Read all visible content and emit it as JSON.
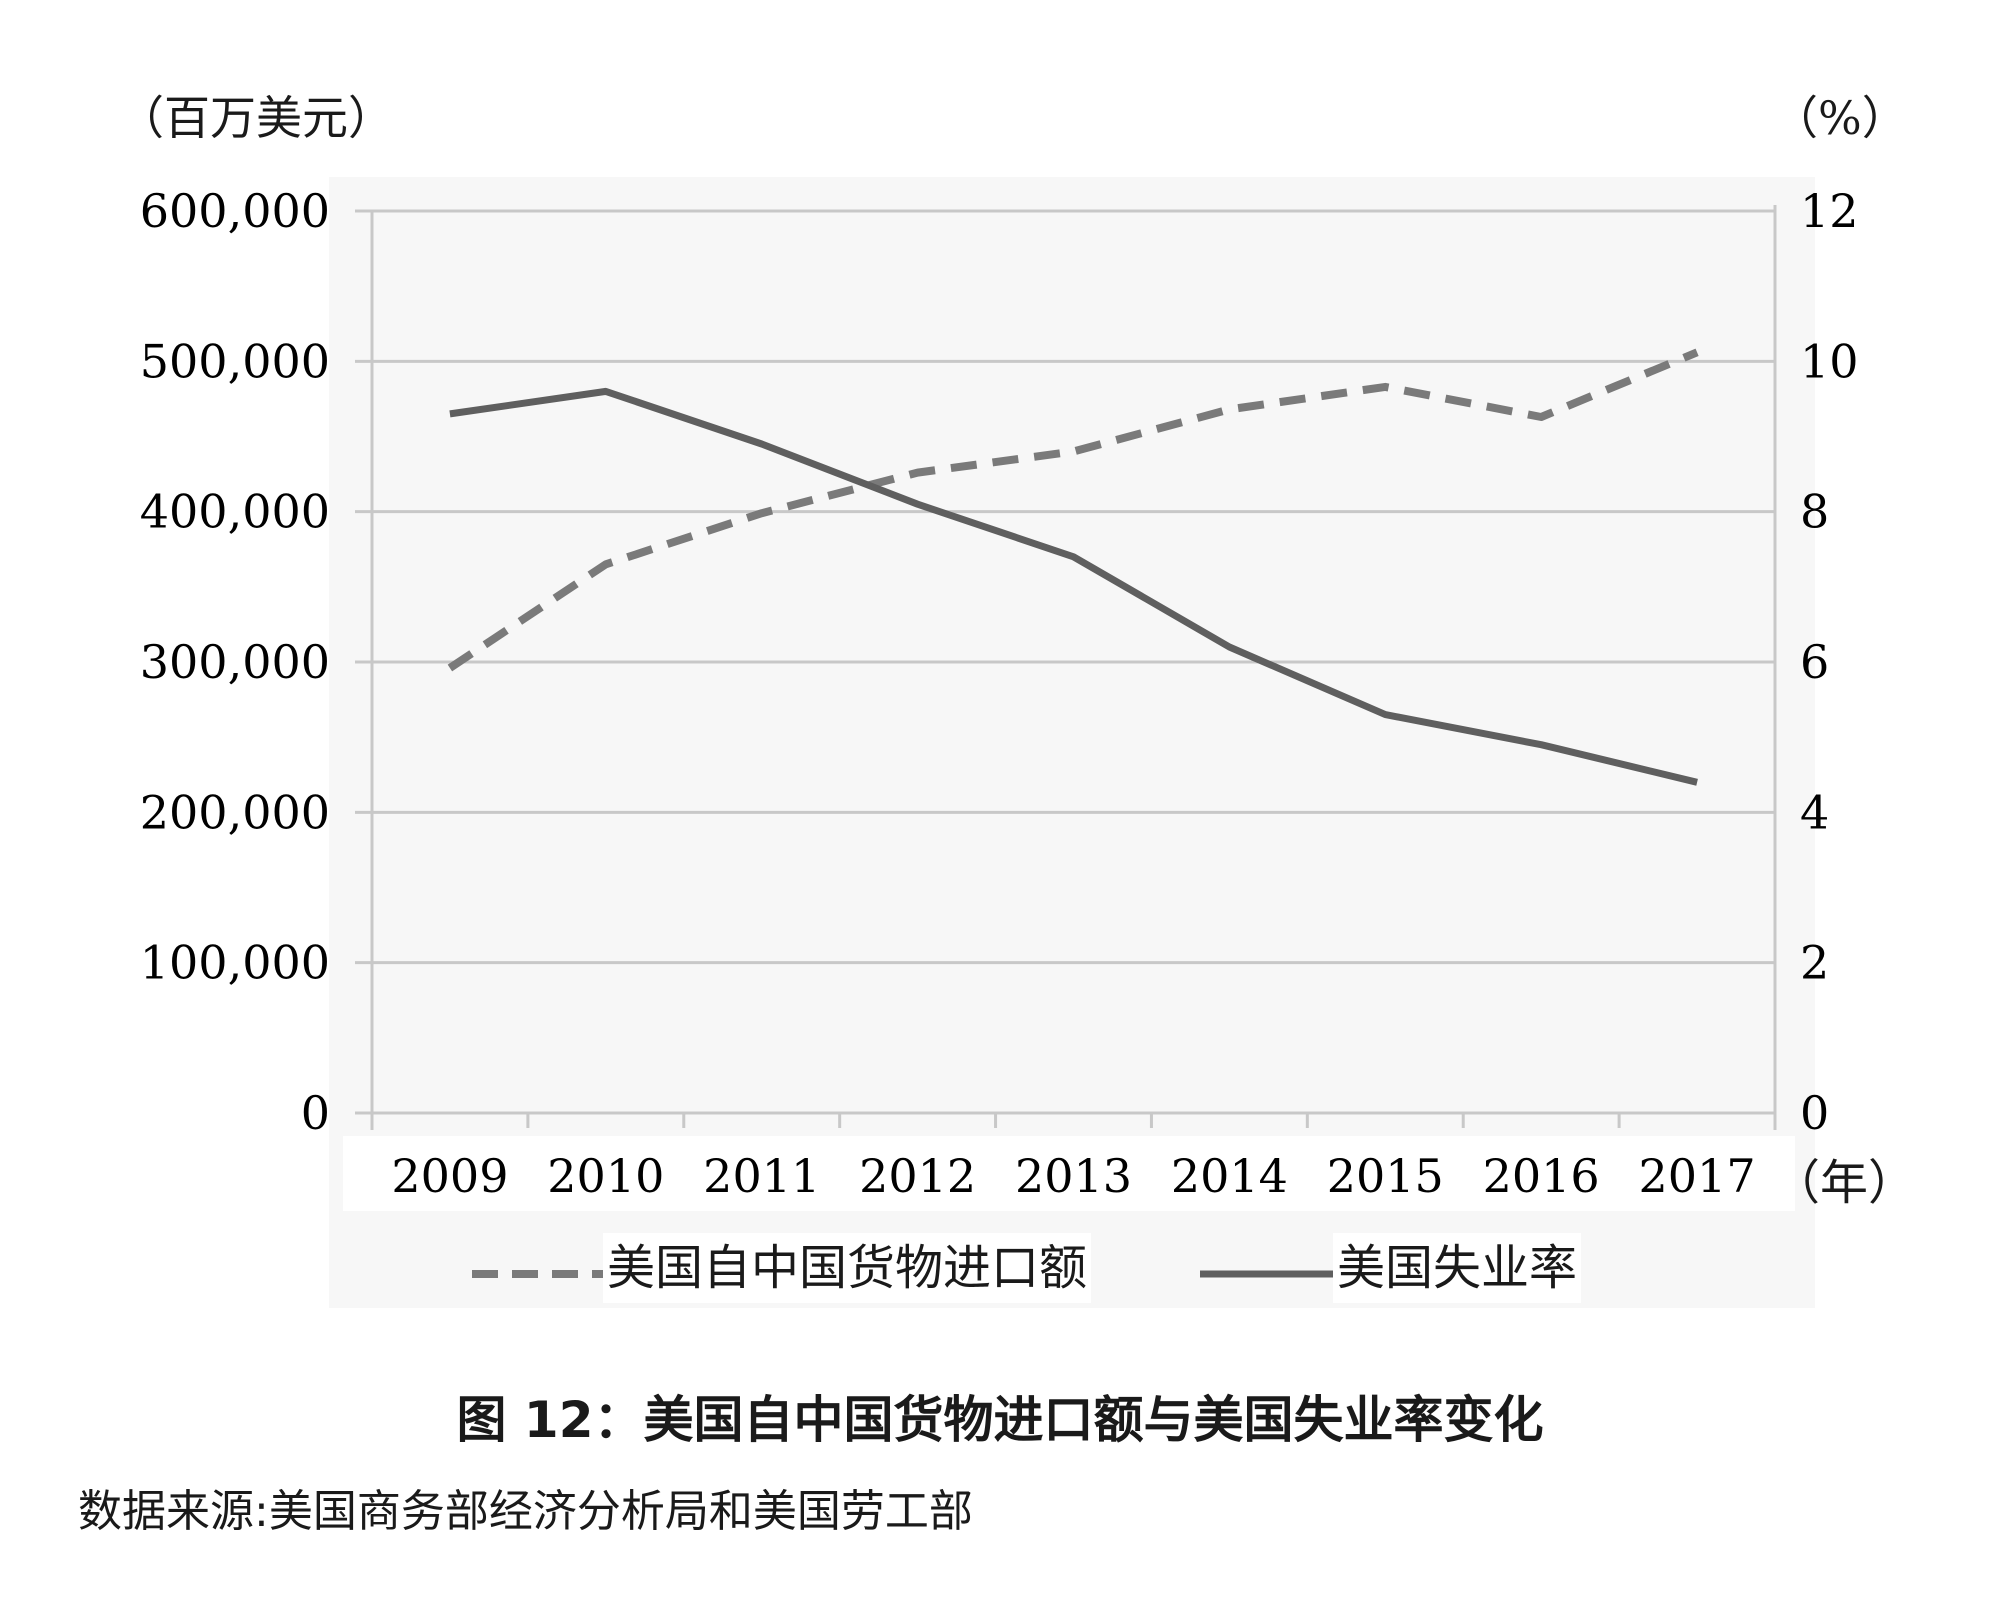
{
  "chart": {
    "left_unit": "（百万美元）",
    "right_unit": "（%）",
    "x_unit": "（年）",
    "title": "图 12：美国自中国货物进口额与美国失业率变化",
    "source": "数据来源:美国商务部经济分析局和美国劳工部",
    "legend": [
      {
        "label": "美国自中国货物进口额",
        "style": "dashed"
      },
      {
        "label": "美国失业率",
        "style": "solid"
      }
    ],
    "left_ticks": [
      "0",
      "100,000",
      "200,000",
      "300,000",
      "400,000",
      "500,000",
      "600,000"
    ],
    "right_ticks": [
      "0",
      "2",
      "4",
      "6",
      "8",
      "10",
      "12"
    ],
    "colors": {
      "panel_bg": "#f7f7f7",
      "grid": "#c8c8c8",
      "line": "#5f5f5f",
      "dashed": "#7a7a7a"
    }
  },
  "chart_data": {
    "type": "line",
    "title": "图 12：美国自中国货物进口额与美国失业率变化",
    "x": [
      "2009",
      "2010",
      "2011",
      "2012",
      "2013",
      "2014",
      "2015",
      "2016",
      "2017"
    ],
    "xlabel": "（年）",
    "series": [
      {
        "name": "美国自中国货物进口额",
        "axis": "left",
        "style": "dashed",
        "values": [
          296000,
          365000,
          399000,
          426000,
          440000,
          468000,
          483000,
          463000,
          506000
        ]
      },
      {
        "name": "美国失业率",
        "axis": "right",
        "style": "solid",
        "values": [
          9.3,
          9.6,
          8.9,
          8.1,
          7.4,
          6.2,
          5.3,
          4.9,
          4.4
        ]
      }
    ],
    "ylabel": "（百万美元）",
    "ylim": [
      0,
      600000
    ],
    "y2label": "（%）",
    "y2lim": [
      0,
      12
    ],
    "grid": true,
    "legend_position": "bottom"
  }
}
